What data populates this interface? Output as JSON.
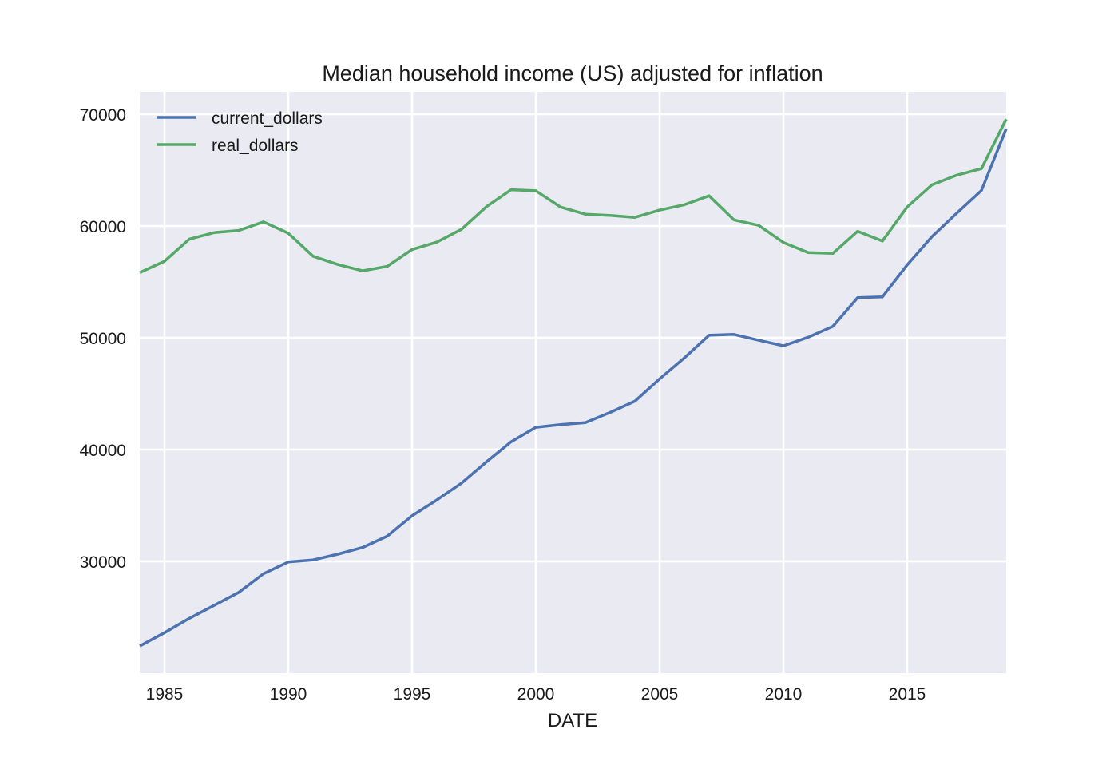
{
  "chart_data": {
    "type": "line",
    "title": "Median household income (US) adjusted for inflation",
    "xlabel": "DATE",
    "ylabel": "",
    "xlim": [
      1984,
      2019
    ],
    "ylim": [
      20000,
      72000
    ],
    "xticks": [
      1985,
      1990,
      1995,
      2000,
      2005,
      2010,
      2015
    ],
    "xtick_labels": [
      "1985",
      "1990",
      "1995",
      "2000",
      "2005",
      "2010",
      "2015"
    ],
    "yticks": [
      30000,
      40000,
      50000,
      60000,
      70000
    ],
    "ytick_labels": [
      "30000",
      "40000",
      "50000",
      "60000",
      "70000"
    ],
    "grid": true,
    "legend_position": "top-left",
    "x": [
      1984,
      1985,
      1986,
      1987,
      1988,
      1989,
      1990,
      1991,
      1992,
      1993,
      1994,
      1995,
      1996,
      1997,
      1998,
      1999,
      2000,
      2001,
      2002,
      2003,
      2004,
      2005,
      2006,
      2007,
      2008,
      2009,
      2010,
      2011,
      2012,
      2013,
      2014,
      2015,
      2016,
      2017,
      2018,
      2019
    ],
    "series": [
      {
        "name": "current_dollars",
        "color": "#4c72b0",
        "values": [
          22420,
          23620,
          24900,
          26060,
          27230,
          28900,
          29940,
          30130,
          30640,
          31240,
          32260,
          34080,
          35490,
          37010,
          38890,
          40700,
          41990,
          42230,
          42410,
          43320,
          44330,
          46330,
          48200,
          50230,
          50300,
          49780,
          49280,
          50050,
          51020,
          53590,
          53660,
          56520,
          59040,
          61140,
          63180,
          68700
        ]
      },
      {
        "name": "real_dollars",
        "color": "#55a868",
        "values": [
          55830,
          56850,
          58820,
          59410,
          59600,
          60370,
          59360,
          57300,
          56560,
          55990,
          56390,
          57900,
          58560,
          59710,
          61720,
          63240,
          63150,
          61690,
          61060,
          60940,
          60770,
          61420,
          61900,
          62700,
          60550,
          60060,
          58530,
          57630,
          57560,
          59530,
          58660,
          61700,
          63680,
          64540,
          65130,
          69560
        ]
      }
    ]
  }
}
